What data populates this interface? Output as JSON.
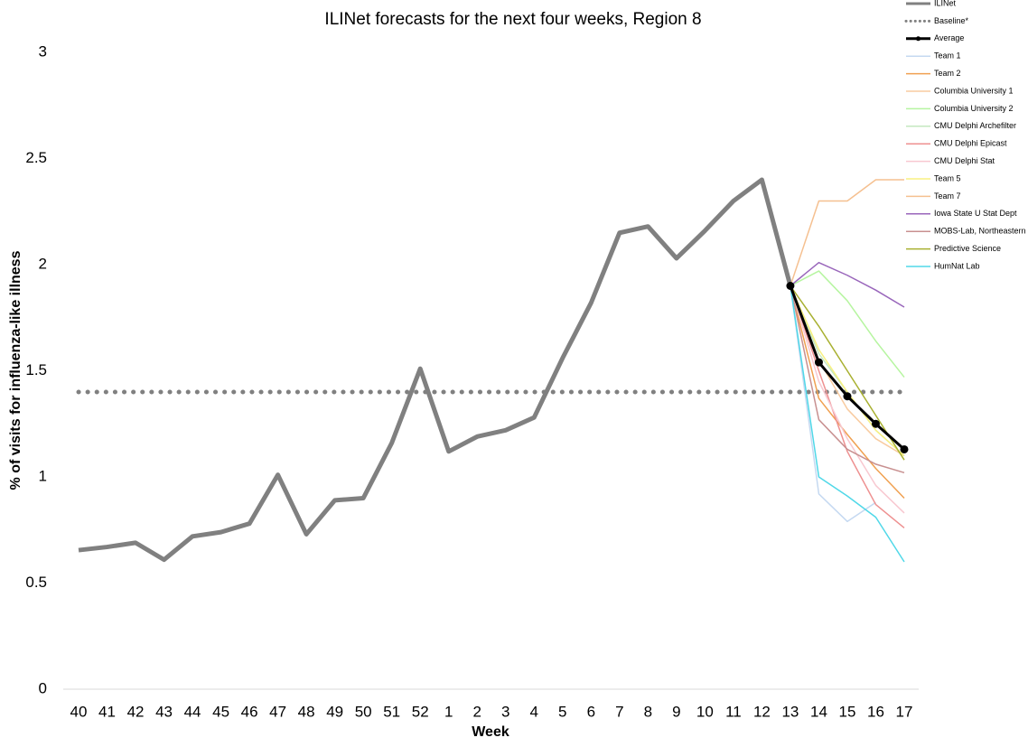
{
  "chart_data": {
    "type": "line",
    "title": "ILINet forecasts for the next four weeks, Region 8",
    "x_label": "Week",
    "y_label": "% of visits for influenza-like illness",
    "categories": [
      "40",
      "41",
      "42",
      "43",
      "44",
      "45",
      "46",
      "47",
      "48",
      "49",
      "50",
      "51",
      "52",
      "1",
      "2",
      "3",
      "4",
      "5",
      "6",
      "7",
      "8",
      "9",
      "10",
      "11",
      "12",
      "13",
      "14",
      "15",
      "16",
      "17"
    ],
    "ylim": [
      0,
      3
    ],
    "yticks": [
      0,
      0.5,
      1,
      1.5,
      2,
      2.5,
      3
    ],
    "grid": false,
    "series": [
      {
        "name": "ILINet",
        "color": "#808080",
        "width": 5,
        "values": [
          0.655,
          0.67,
          0.69,
          0.61,
          0.72,
          0.74,
          0.78,
          1.01,
          0.73,
          0.89,
          0.9,
          1.16,
          1.51,
          1.12,
          1.19,
          1.22,
          1.28,
          1.56,
          1.82,
          2.15,
          2.18,
          2.03,
          2.16,
          2.3,
          2.4,
          1.9,
          null,
          null,
          null,
          null
        ]
      },
      {
        "name": "Baseline*",
        "color": "#808080",
        "width": 5,
        "dotted": true,
        "values": [
          1.4,
          1.4,
          1.4,
          1.4,
          1.4,
          1.4,
          1.4,
          1.4,
          1.4,
          1.4,
          1.4,
          1.4,
          1.4,
          1.4,
          1.4,
          1.4,
          1.4,
          1.4,
          1.4,
          1.4,
          1.4,
          1.4,
          1.4,
          1.4,
          1.4,
          1.4,
          1.4,
          1.4,
          1.4,
          1.4
        ]
      },
      {
        "name": "Average",
        "color": "#000000",
        "width": 3,
        "markers": true,
        "values": [
          null,
          null,
          null,
          null,
          null,
          null,
          null,
          null,
          null,
          null,
          null,
          null,
          null,
          null,
          null,
          null,
          null,
          null,
          null,
          null,
          null,
          null,
          null,
          null,
          null,
          1.9,
          1.54,
          1.38,
          1.25,
          1.13
        ]
      },
      {
        "name": "Team 1",
        "color": "#c5d9f1",
        "width": 1.5,
        "values": [
          null,
          null,
          null,
          null,
          null,
          null,
          null,
          null,
          null,
          null,
          null,
          null,
          null,
          null,
          null,
          null,
          null,
          null,
          null,
          null,
          null,
          null,
          null,
          null,
          null,
          1.9,
          0.92,
          0.79,
          0.88,
          null
        ]
      },
      {
        "name": "Team 2",
        "color": "#f0a050",
        "width": 1.5,
        "values": [
          null,
          null,
          null,
          null,
          null,
          null,
          null,
          null,
          null,
          null,
          null,
          null,
          null,
          null,
          null,
          null,
          null,
          null,
          null,
          null,
          null,
          null,
          null,
          null,
          null,
          1.9,
          1.37,
          1.2,
          1.04,
          0.9
        ]
      },
      {
        "name": "Columbia University 1",
        "color": "#f8cba0",
        "width": 1.5,
        "values": [
          null,
          null,
          null,
          null,
          null,
          null,
          null,
          null,
          null,
          null,
          null,
          null,
          null,
          null,
          null,
          null,
          null,
          null,
          null,
          null,
          null,
          null,
          null,
          null,
          null,
          1.9,
          1.55,
          1.32,
          1.18,
          1.1
        ]
      },
      {
        "name": "Columbia University 2",
        "color": "#b6f5a0",
        "width": 1.5,
        "values": [
          null,
          null,
          null,
          null,
          null,
          null,
          null,
          null,
          null,
          null,
          null,
          null,
          null,
          null,
          null,
          null,
          null,
          null,
          null,
          null,
          null,
          null,
          null,
          null,
          null,
          1.9,
          1.97,
          1.83,
          1.64,
          1.47
        ]
      },
      {
        "name": "CMU Delphi Archefilter",
        "color": "#c4e8c0",
        "width": 1.5,
        "values": [
          null,
          null,
          null,
          null,
          null,
          null,
          null,
          null,
          null,
          null,
          null,
          null,
          null,
          null,
          null,
          null,
          null,
          null,
          null,
          null,
          null,
          null,
          null,
          null,
          null,
          1.9,
          1.58,
          1.4,
          1.22,
          1.1
        ]
      },
      {
        "name": "CMU Delphi Epicast",
        "color": "#ee9090",
        "width": 1.5,
        "values": [
          null,
          null,
          null,
          null,
          null,
          null,
          null,
          null,
          null,
          null,
          null,
          null,
          null,
          null,
          null,
          null,
          null,
          null,
          null,
          null,
          null,
          null,
          null,
          null,
          null,
          1.9,
          1.5,
          1.12,
          0.87,
          0.76
        ]
      },
      {
        "name": "CMU Delphi Stat",
        "color": "#f8c8d0",
        "width": 1.5,
        "values": [
          null,
          null,
          null,
          null,
          null,
          null,
          null,
          null,
          null,
          null,
          null,
          null,
          null,
          null,
          null,
          null,
          null,
          null,
          null,
          null,
          null,
          null,
          null,
          null,
          null,
          1.9,
          1.45,
          1.18,
          0.96,
          0.83
        ]
      },
      {
        "name": "Team 5",
        "color": "#f8f080",
        "width": 1.5,
        "values": [
          null,
          null,
          null,
          null,
          null,
          null,
          null,
          null,
          null,
          null,
          null,
          null,
          null,
          null,
          null,
          null,
          null,
          null,
          null,
          null,
          null,
          null,
          null,
          null,
          null,
          1.9,
          1.6,
          1.4,
          1.22,
          1.1
        ]
      },
      {
        "name": "Team 7",
        "color": "#f5c090",
        "width": 1.5,
        "values": [
          null,
          null,
          null,
          null,
          null,
          null,
          null,
          null,
          null,
          null,
          null,
          null,
          null,
          null,
          null,
          null,
          null,
          null,
          null,
          null,
          null,
          null,
          null,
          null,
          null,
          1.9,
          2.3,
          2.3,
          2.4,
          2.4
        ]
      },
      {
        "name": "Iowa State U Stat Dept",
        "color": "#9966bb",
        "width": 1.5,
        "values": [
          null,
          null,
          null,
          null,
          null,
          null,
          null,
          null,
          null,
          null,
          null,
          null,
          null,
          null,
          null,
          null,
          null,
          null,
          null,
          null,
          null,
          null,
          null,
          null,
          null,
          1.9,
          2.01,
          1.95,
          1.88,
          1.8
        ]
      },
      {
        "name": "MOBS-Lab, Northeastern",
        "color": "#c89090",
        "width": 1.5,
        "values": [
          null,
          null,
          null,
          null,
          null,
          null,
          null,
          null,
          null,
          null,
          null,
          null,
          null,
          null,
          null,
          null,
          null,
          null,
          null,
          null,
          null,
          null,
          null,
          null,
          null,
          1.9,
          1.27,
          1.13,
          1.06,
          1.02
        ]
      },
      {
        "name": "Predictive Science",
        "color": "#a8b030",
        "width": 1.5,
        "values": [
          null,
          null,
          null,
          null,
          null,
          null,
          null,
          null,
          null,
          null,
          null,
          null,
          null,
          null,
          null,
          null,
          null,
          null,
          null,
          null,
          null,
          null,
          null,
          null,
          null,
          1.9,
          1.71,
          1.5,
          1.29,
          1.08
        ]
      },
      {
        "name": "HumNat Lab",
        "color": "#50d8e8",
        "width": 1.5,
        "values": [
          null,
          null,
          null,
          null,
          null,
          null,
          null,
          null,
          null,
          null,
          null,
          null,
          null,
          null,
          null,
          null,
          null,
          null,
          null,
          null,
          null,
          null,
          null,
          null,
          null,
          1.9,
          1.0,
          0.91,
          0.81,
          0.6
        ]
      }
    ]
  }
}
